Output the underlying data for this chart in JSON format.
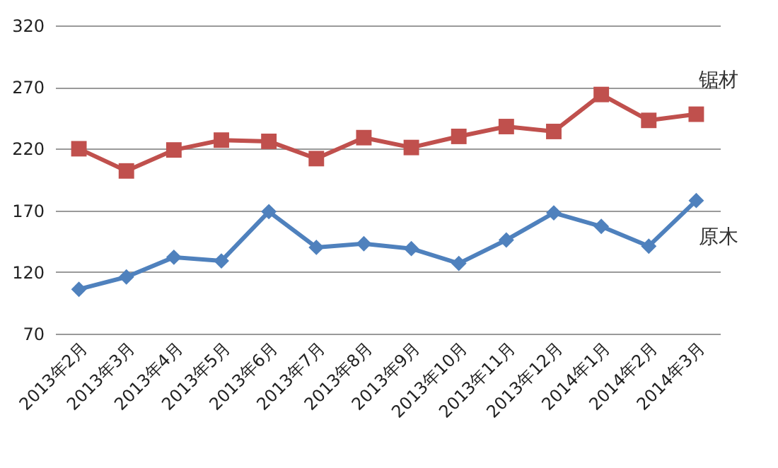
{
  "chart_data": {
    "type": "line",
    "categories": [
      "2013年2月",
      "2013年3月",
      "2013年4月",
      "2013年5月",
      "2013年6月",
      "2013年7月",
      "2013年8月",
      "2013年9月",
      "2013年10月",
      "2013年11月",
      "2013年12月",
      "2014年1月",
      "2014年2月",
      "2014年3月"
    ],
    "series": [
      {
        "name": "锯材",
        "color": "#c0504d",
        "marker": "square",
        "values": [
          220,
          202,
          219,
          227,
          226,
          212,
          229,
          221,
          230,
          238,
          234,
          264,
          243,
          248
        ]
      },
      {
        "name": "原木",
        "color": "#4f81bd",
        "marker": "diamond",
        "values": [
          106,
          116,
          132,
          129,
          169,
          140,
          143,
          139,
          127,
          146,
          168,
          157,
          141,
          178
        ]
      }
    ],
    "ylim": [
      70,
      320
    ],
    "yticks": [
      70,
      120,
      170,
      220,
      270,
      320
    ],
    "grid": "y",
    "line_style": "solid"
  }
}
